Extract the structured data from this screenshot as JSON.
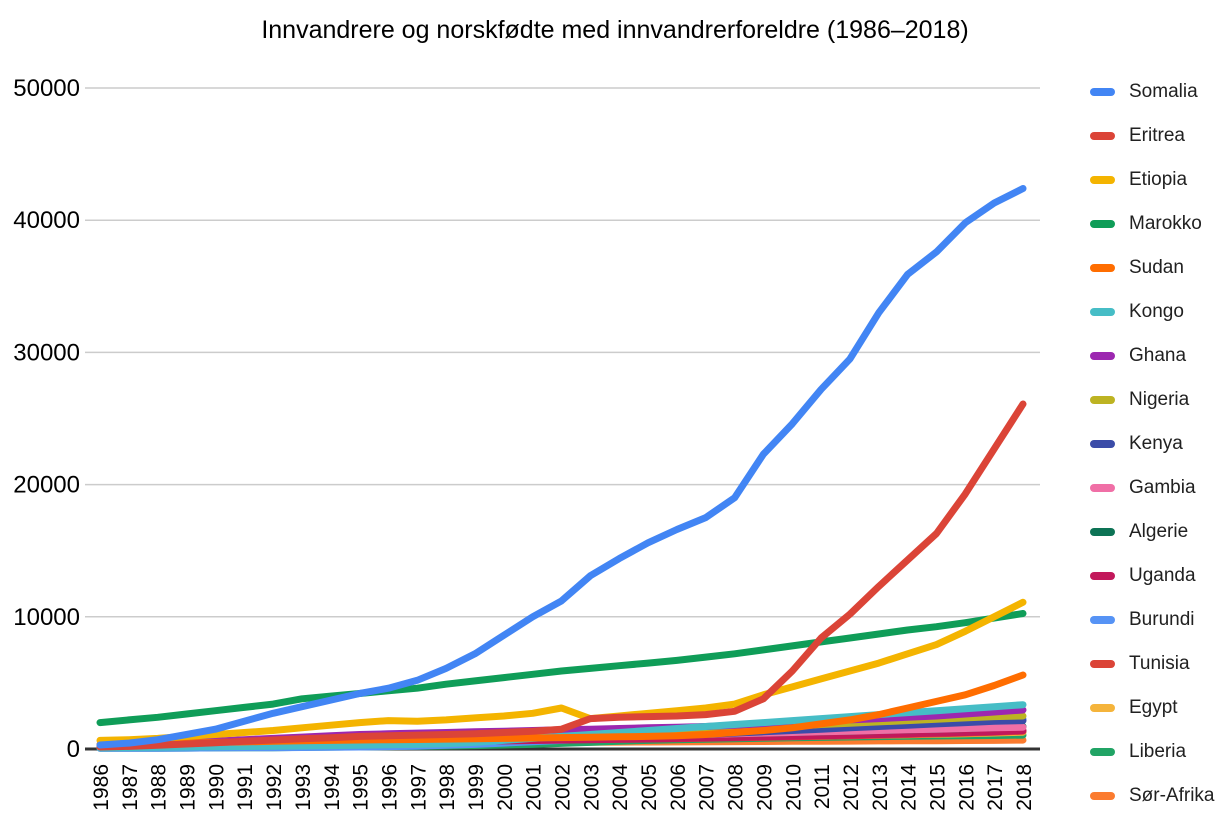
{
  "title": "Innvandrere og norskfødte med innvandrerforeldre (1986–2018)",
  "chart_data": {
    "type": "line",
    "title": "Innvandrere og norskfødte med innvandrerforeldre (1986–2018)",
    "xlabel": "",
    "ylabel": "",
    "ylim": [
      0,
      50000
    ],
    "yticks": [
      0,
      10000,
      20000,
      30000,
      40000,
      50000
    ],
    "ytick_labels": [
      "0",
      "10000",
      "20000",
      "30000",
      "40000",
      "50000"
    ],
    "grid": true,
    "legend_position": "right",
    "x": [
      1986,
      1987,
      1988,
      1989,
      1990,
      1991,
      1992,
      1993,
      1994,
      1995,
      1996,
      1997,
      1998,
      1999,
      2000,
      2001,
      2002,
      2003,
      2004,
      2005,
      2006,
      2007,
      2008,
      2009,
      2010,
      2011,
      2012,
      2013,
      2014,
      2015,
      2016,
      2017,
      2018
    ],
    "series": [
      {
        "name": "Somalia",
        "color": "#4285F4",
        "values": [
          300,
          450,
          700,
          1100,
          1500,
          2100,
          2700,
          3200,
          3700,
          4200,
          4600,
          5200,
          6100,
          7200,
          8600,
          10000,
          11200,
          13100,
          14400,
          15600,
          16600,
          17500,
          19000,
          22300,
          24600,
          27200,
          29500,
          33000,
          35900,
          37600,
          39800,
          41300,
          42400
        ]
      },
      {
        "name": "Eritrea",
        "color": "#DB4437",
        "values": [
          150,
          200,
          280,
          380,
          480,
          580,
          680,
          780,
          850,
          950,
          1000,
          1050,
          1100,
          1150,
          1250,
          1350,
          1500,
          2300,
          2400,
          2450,
          2500,
          2600,
          2850,
          3800,
          5900,
          8400,
          10200,
          12300,
          14300,
          16300,
          19300,
          22700,
          26100
        ]
      },
      {
        "name": "Etiopia",
        "color": "#F4B400",
        "values": [
          650,
          700,
          800,
          950,
          1100,
          1250,
          1400,
          1600,
          1800,
          2000,
          2150,
          2100,
          2200,
          2350,
          2500,
          2700,
          3100,
          2300,
          2500,
          2700,
          2900,
          3100,
          3400,
          4100,
          4700,
          5300,
          5900,
          6500,
          7200,
          7900,
          8900,
          10000,
          11100
        ]
      },
      {
        "name": "Marokko",
        "color": "#0F9D58",
        "values": [
          2000,
          2200,
          2400,
          2650,
          2900,
          3150,
          3400,
          3800,
          4000,
          4200,
          4400,
          4600,
          4900,
          5150,
          5400,
          5650,
          5900,
          6100,
          6300,
          6500,
          6700,
          6950,
          7200,
          7500,
          7800,
          8100,
          8400,
          8700,
          9000,
          9250,
          9550,
          9900,
          10250
        ]
      },
      {
        "name": "Sudan",
        "color": "#FF6D00",
        "values": [
          350,
          380,
          420,
          460,
          500,
          540,
          580,
          620,
          650,
          680,
          700,
          720,
          750,
          780,
          800,
          830,
          860,
          890,
          920,
          950,
          1000,
          1100,
          1250,
          1400,
          1600,
          1900,
          2200,
          2600,
          3100,
          3600,
          4100,
          4800,
          5600
        ]
      },
      {
        "name": "Kongo",
        "color": "#46BDC6",
        "values": [
          100,
          110,
          130,
          150,
          170,
          190,
          210,
          230,
          260,
          290,
          320,
          350,
          400,
          500,
          650,
          800,
          950,
          1100,
          1250,
          1400,
          1550,
          1700,
          1850,
          2000,
          2150,
          2300,
          2450,
          2600,
          2750,
          2900,
          3050,
          3200,
          3350
        ]
      },
      {
        "name": "Ghana",
        "color": "#9C27B0",
        "values": [
          300,
          350,
          420,
          500,
          600,
          700,
          800,
          900,
          1000,
          1100,
          1150,
          1200,
          1250,
          1300,
          1350,
          1400,
          1450,
          1500,
          1550,
          1600,
          1650,
          1700,
          1800,
          1900,
          2000,
          2100,
          2200,
          2300,
          2400,
          2500,
          2650,
          2800,
          2950
        ]
      },
      {
        "name": "Nigeria",
        "color": "#BDB322",
        "values": [
          200,
          230,
          270,
          310,
          350,
          400,
          450,
          500,
          550,
          600,
          640,
          680,
          720,
          760,
          800,
          850,
          900,
          950,
          1000,
          1050,
          1150,
          1250,
          1400,
          1550,
          1700,
          1850,
          1950,
          2050,
          2150,
          2250,
          2350,
          2450,
          2500
        ]
      },
      {
        "name": "Kenya",
        "color": "#3B4CA8",
        "values": [
          250,
          280,
          320,
          360,
          400,
          440,
          480,
          520,
          560,
          600,
          630,
          660,
          700,
          740,
          780,
          820,
          860,
          900,
          950,
          1000,
          1050,
          1100,
          1200,
          1300,
          1400,
          1500,
          1600,
          1700,
          1800,
          1900,
          2000,
          2100,
          2150
        ]
      },
      {
        "name": "Gambia",
        "color": "#F06FA6",
        "values": [
          200,
          230,
          270,
          320,
          380,
          440,
          500,
          560,
          620,
          680,
          720,
          760,
          800,
          840,
          880,
          920,
          950,
          980,
          1010,
          1040,
          1070,
          1100,
          1150,
          1200,
          1250,
          1300,
          1350,
          1400,
          1450,
          1500,
          1550,
          1600,
          1650
        ]
      },
      {
        "name": "Algerie",
        "color": "#0D7355",
        "values": [
          250,
          280,
          320,
          370,
          420,
          480,
          540,
          600,
          650,
          700,
          740,
          780,
          820,
          860,
          900,
          930,
          960,
          990,
          1020,
          1050,
          1080,
          1110,
          1150,
          1200,
          1250,
          1300,
          1350,
          1400,
          1450,
          1500,
          1550,
          1620,
          1700
        ]
      },
      {
        "name": "Uganda",
        "color": "#C2185B",
        "values": [
          150,
          170,
          200,
          230,
          260,
          300,
          340,
          380,
          420,
          460,
          490,
          520,
          550,
          580,
          610,
          640,
          670,
          700,
          730,
          760,
          800,
          840,
          880,
          920,
          960,
          1000,
          1050,
          1100,
          1150,
          1200,
          1250,
          1300,
          1400
        ]
      },
      {
        "name": "Burundi",
        "color": "#5693F5",
        "values": [
          50,
          55,
          60,
          70,
          80,
          90,
          100,
          110,
          130,
          150,
          180,
          220,
          280,
          350,
          450,
          550,
          650,
          750,
          850,
          950,
          1050,
          1150,
          1250,
          1350,
          1450,
          1550,
          1650,
          1750,
          1850,
          1950,
          2050,
          2150,
          2250
        ]
      },
      {
        "name": "Tunisia",
        "color": "#DB4437",
        "values": [
          300,
          320,
          350,
          380,
          410,
          440,
          470,
          500,
          530,
          560,
          580,
          600,
          620,
          640,
          660,
          680,
          700,
          720,
          740,
          760,
          790,
          820,
          850,
          880,
          920,
          960,
          1000,
          1050,
          1100,
          1150,
          1200,
          1270,
          1350
        ]
      },
      {
        "name": "Egypt",
        "color": "#F5B43B",
        "values": [
          250,
          270,
          300,
          330,
          360,
          390,
          420,
          450,
          480,
          510,
          530,
          550,
          580,
          610,
          640,
          670,
          700,
          730,
          760,
          790,
          820,
          850,
          880,
          910,
          940,
          970,
          1000,
          1040,
          1080,
          1120,
          1160,
          1210,
          1270
        ]
      },
      {
        "name": "Liberia",
        "color": "#21A465",
        "values": [
          50,
          55,
          60,
          70,
          80,
          90,
          100,
          120,
          140,
          160,
          180,
          200,
          230,
          260,
          300,
          350,
          420,
          500,
          580,
          650,
          700,
          740,
          780,
          820,
          850,
          880,
          910,
          940,
          960,
          980,
          1000,
          1020,
          1050
        ]
      },
      {
        "name": "Sør-Afrika",
        "color": "#FB7B2F",
        "values": [
          300,
          310,
          330,
          350,
          370,
          390,
          400,
          410,
          420,
          430,
          440,
          450,
          460,
          470,
          480,
          490,
          500,
          510,
          520,
          530,
          540,
          550,
          560,
          570,
          580,
          590,
          600,
          610,
          620,
          630,
          640,
          650,
          670
        ]
      }
    ]
  },
  "colors": {
    "gridline": "#cccccc",
    "axis_line": "#333333",
    "tick_text": "#000000"
  }
}
